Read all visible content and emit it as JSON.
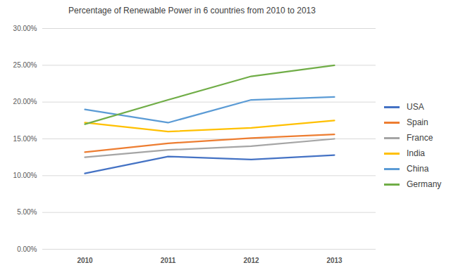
{
  "chart_data": {
    "type": "line",
    "title": "Percentage of Renewable Power in 6 countries from 2010 to 2013",
    "categories": [
      "2010",
      "2011",
      "2012",
      "2013"
    ],
    "series": [
      {
        "name": "USA",
        "color": "#4472c4",
        "values": [
          10.3,
          12.6,
          12.2,
          12.8
        ]
      },
      {
        "name": "Spain",
        "color": "#ed7d31",
        "values": [
          13.2,
          14.4,
          15.1,
          15.6
        ]
      },
      {
        "name": "France",
        "color": "#a5a5a5",
        "values": [
          12.5,
          13.5,
          14.0,
          15.0
        ]
      },
      {
        "name": "India",
        "color": "#ffc000",
        "values": [
          17.2,
          16.0,
          16.5,
          17.5
        ]
      },
      {
        "name": "China",
        "color": "#5b9bd5",
        "values": [
          19.0,
          17.2,
          20.3,
          20.7
        ]
      },
      {
        "name": "Germany",
        "color": "#70ad47",
        "values": [
          17.0,
          20.3,
          23.5,
          25.0
        ]
      }
    ],
    "ylim": [
      0,
      30
    ],
    "yticks": [
      {
        "value": 0,
        "label": "0.00%"
      },
      {
        "value": 5,
        "label": "5.00%"
      },
      {
        "value": 10,
        "label": "10.00%"
      },
      {
        "value": 15,
        "label": "15.00%"
      },
      {
        "value": 20,
        "label": "20.00%"
      },
      {
        "value": 25,
        "label": "25.00%"
      },
      {
        "value": 30,
        "label": "30.00%"
      }
    ],
    "grid": true,
    "legend": "right"
  }
}
